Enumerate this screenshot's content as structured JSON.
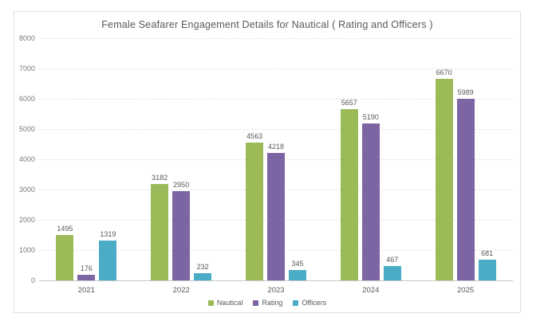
{
  "chart_data": {
    "type": "bar",
    "title": "Female Seafarer Engagement Details for Nautical ( Rating and Officers )",
    "categories": [
      "2021",
      "2022",
      "2023",
      "2024",
      "2025"
    ],
    "series": [
      {
        "name": "Nautical",
        "color": "#9bbb59",
        "values": [
          1495,
          3182,
          4563,
          5657,
          6670
        ]
      },
      {
        "name": "Rating",
        "color": "#7d64a3",
        "values": [
          176,
          2950,
          4218,
          5190,
          5989
        ]
      },
      {
        "name": "Officers",
        "color": "#4bacc6",
        "values": [
          1319,
          232,
          345,
          467,
          681
        ]
      }
    ],
    "xlabel": "",
    "ylabel": "",
    "y_axis": {
      "min": 0,
      "max": 8000,
      "step": 1000
    },
    "y_tick_labels": [
      "0",
      "1000",
      "2000",
      "3000",
      "4000",
      "5000",
      "6000",
      "7000",
      "8000"
    ],
    "grid": "horizontal-dashed",
    "legend_position": "bottom-center",
    "show_value_labels": true,
    "label_color": "#595959",
    "frame_border_color": "#e2e2e2"
  }
}
